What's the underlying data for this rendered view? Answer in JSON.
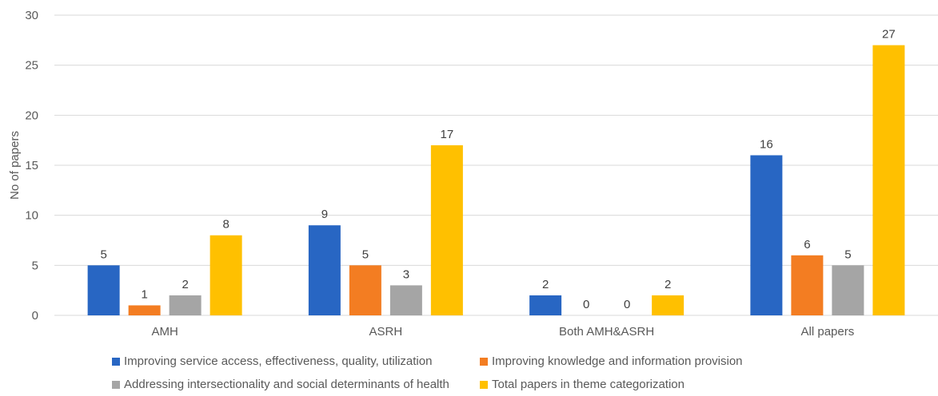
{
  "chart_data": {
    "type": "bar",
    "ylabel": "No of papers",
    "ylim": [
      0,
      30
    ],
    "yticks": [
      0,
      5,
      10,
      15,
      20,
      25,
      30
    ],
    "categories": [
      "AMH",
      "ASRH",
      "Both AMH&ASRH",
      "All papers"
    ],
    "series": [
      {
        "name": "Improving service access, effectiveness, quality, utilization",
        "color": "#2866C3",
        "values": [
          5,
          9,
          2,
          16
        ]
      },
      {
        "name": "Improving knowledge and information provision",
        "color": "#F37D22",
        "values": [
          1,
          5,
          0,
          6
        ]
      },
      {
        "name": "Addressing intersectionality and social determinants of health",
        "color": "#A5A5A5",
        "values": [
          2,
          3,
          0,
          5
        ]
      },
      {
        "name": "Total papers in theme categorization",
        "color": "#FFC000",
        "values": [
          8,
          17,
          2,
          27
        ]
      }
    ],
    "grid": true,
    "legend_position": "bottom"
  }
}
